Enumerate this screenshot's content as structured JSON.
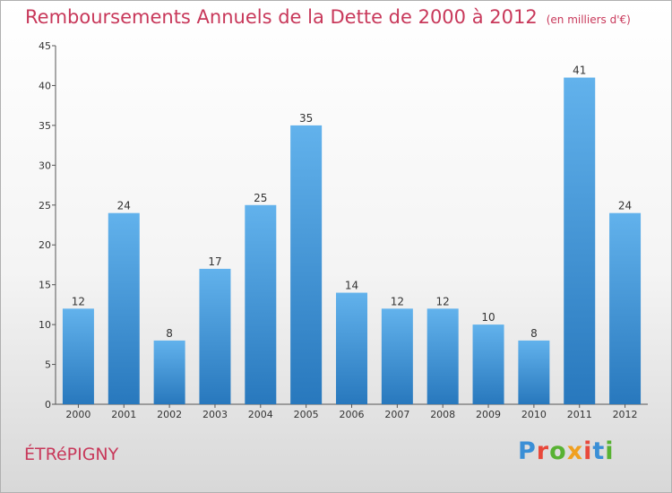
{
  "title": "Remboursements Annuels de la Dette de 2000 à 2012",
  "unit_note": "(en milliers d'€)",
  "commune": "ÉTRéPIGNY",
  "logo": {
    "text": "Proxiti",
    "colors": [
      "#3a8fd6",
      "#e8483a",
      "#58b233",
      "#f0a020",
      "#e8483a",
      "#3a8fd6",
      "#58b233"
    ]
  },
  "colors": {
    "accent": "#c8385a",
    "bar_light": "#62b2ec",
    "bar_dark": "#2878bd"
  },
  "chart_data": {
    "type": "bar",
    "categories": [
      "2000",
      "2001",
      "2002",
      "2003",
      "2004",
      "2005",
      "2006",
      "2007",
      "2008",
      "2009",
      "2010",
      "2011",
      "2012"
    ],
    "values": [
      12,
      24,
      8,
      17,
      25,
      35,
      14,
      12,
      12,
      10,
      8,
      41,
      24
    ],
    "ylim": [
      0,
      45
    ],
    "yticks": [
      0,
      5,
      10,
      15,
      20,
      25,
      30,
      35,
      40,
      45
    ],
    "grid": false,
    "data_labels": true
  }
}
